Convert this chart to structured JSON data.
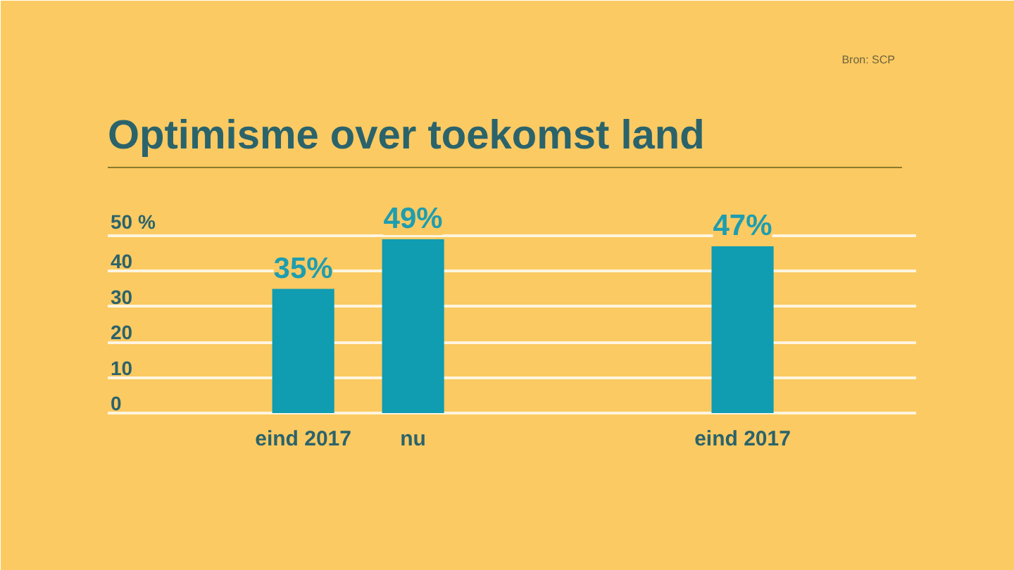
{
  "chart_data": {
    "type": "bar",
    "title": "Optimisme over toekomst land",
    "annotations": [
      "Bron: SCP"
    ],
    "categories": [
      "eind 2017",
      "nu",
      null,
      null,
      "eind 2017"
    ],
    "values": [
      35,
      49,
      null,
      null,
      47
    ],
    "color": "#109cb1",
    "value_labels": [
      "35%",
      "49%",
      null,
      null,
      "47%"
    ],
    "ylim": [
      0,
      50
    ],
    "yticks": [
      0,
      10,
      20,
      30,
      40,
      {
        "value": 50,
        "label": "50 %"
      }
    ],
    "grid": "y"
  }
}
